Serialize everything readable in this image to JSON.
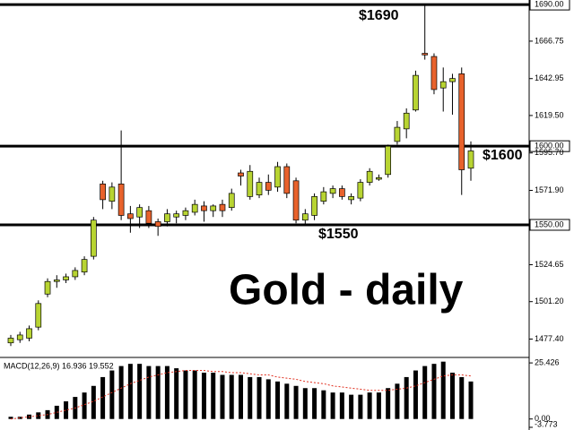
{
  "chart_data": [
    {
      "type": "candlestick",
      "open": [
        1475,
        1477,
        1478,
        1485,
        1506,
        1514,
        1515,
        1517,
        1520,
        1530,
        1576,
        1565,
        1576,
        1557,
        1555,
        1559,
        1552,
        1552,
        1555,
        1556,
        1558,
        1562,
        1559,
        1563,
        1561,
        1583,
        1568,
        1569,
        1577,
        1574,
        1587,
        1578,
        1553,
        1556,
        1565,
        1570,
        1573,
        1566,
        1567,
        1577,
        1579,
        1582,
        1603,
        1611,
        1623,
        1659,
        1657,
        1637,
        1641,
        1646,
        1586
      ],
      "high": [
        1480,
        1482,
        1486,
        1502,
        1516,
        1518,
        1519,
        1523,
        1530,
        1555,
        1578,
        1577,
        1610,
        1562,
        1563,
        1562,
        1554,
        1560,
        1559,
        1561,
        1566,
        1565,
        1563,
        1566,
        1573,
        1585,
        1588,
        1580,
        1582,
        1590,
        1589,
        1580,
        1560,
        1570,
        1574,
        1575,
        1575,
        1570,
        1579,
        1586,
        1582,
        1601,
        1616,
        1624,
        1648,
        1690,
        1659,
        1650,
        1646,
        1650,
        1603
      ],
      "low": [
        1473,
        1475,
        1476,
        1483,
        1504,
        1510,
        1513,
        1515,
        1518,
        1528,
        1560,
        1560,
        1553,
        1545,
        1548,
        1548,
        1543,
        1549,
        1551,
        1553,
        1556,
        1552,
        1555,
        1555,
        1559,
        1575,
        1566,
        1567,
        1569,
        1571,
        1567,
        1551,
        1550,
        1553,
        1563,
        1567,
        1566,
        1563,
        1565,
        1575,
        1578,
        1580,
        1601,
        1605,
        1622,
        1655,
        1633,
        1622,
        1620,
        1569,
        1578
      ],
      "close": [
        1478,
        1480,
        1484,
        1500,
        1514,
        1515,
        1517,
        1521,
        1528,
        1553,
        1566,
        1574,
        1556,
        1554,
        1561,
        1551,
        1549,
        1557,
        1557,
        1559,
        1563,
        1559,
        1562,
        1559,
        1570,
        1581,
        1584,
        1577,
        1572,
        1587,
        1570,
        1553,
        1557,
        1568,
        1571,
        1573,
        1568,
        1568,
        1577,
        1584,
        1580,
        1600,
        1612,
        1621,
        1645,
        1658,
        1636,
        1641,
        1643,
        1585,
        1597
      ],
      "up_color": "#b8d432",
      "down_color": "#e8622c",
      "ylim": [
        1466.3,
        1692.9
      ],
      "yticks": [
        {
          "value": 1690,
          "label": "1690.00"
        },
        {
          "value": 1666.75,
          "label": "1666.75"
        },
        {
          "value": 1642.95,
          "label": "1642.95"
        },
        {
          "value": 1619.5,
          "label": "1619.50"
        },
        {
          "value": 1600,
          "label": "1600.00"
        },
        {
          "value": 1595.7,
          "label": "1595.70"
        },
        {
          "value": 1571.9,
          "label": "1571.90"
        },
        {
          "value": 1550,
          "label": "1550.00"
        },
        {
          "value": 1524.65,
          "label": "1524.65"
        },
        {
          "value": 1501.2,
          "label": "1501.20"
        },
        {
          "value": 1477.4,
          "label": "1477.40"
        }
      ],
      "levels": [
        1690,
        1600,
        1550
      ],
      "annotations": [
        "$1690",
        "$1600",
        "$1550"
      ],
      "watermark": "Gold - daily"
    },
    {
      "type": "bar",
      "title": "MACD(12,26,9) 16.936 19.552",
      "values": [
        1,
        1,
        2,
        3,
        4,
        6,
        8,
        10,
        12,
        15,
        19,
        22,
        24,
        25,
        25,
        24,
        24,
        24,
        23,
        22,
        22,
        21,
        21,
        20,
        20,
        20,
        19,
        19,
        18,
        17,
        16,
        15,
        14,
        14,
        13,
        12,
        12,
        11,
        11,
        12,
        12,
        14,
        16,
        19,
        22,
        24,
        25,
        26,
        21,
        19,
        17
      ],
      "signal": [
        0,
        0.5,
        1,
        1.5,
        2,
        3,
        4,
        5,
        6.5,
        8,
        10,
        12,
        14,
        16,
        17.5,
        19,
        20,
        21,
        21.5,
        22,
        22,
        22,
        21.5,
        21.5,
        21,
        21,
        20.5,
        20,
        20,
        19,
        18.5,
        18,
        17,
        16.5,
        16,
        15,
        14.5,
        14,
        13.5,
        13,
        13,
        13,
        13.5,
        14,
        15,
        16.5,
        18,
        19.5,
        20,
        20,
        19.5
      ],
      "color": "#000000",
      "signal_color": "#e03020",
      "ylim": [
        -3.773,
        27.5
      ],
      "yticks": [
        25.426,
        {
          "value": 0,
          "label": "0.00"
        },
        -3.773
      ]
    }
  ]
}
